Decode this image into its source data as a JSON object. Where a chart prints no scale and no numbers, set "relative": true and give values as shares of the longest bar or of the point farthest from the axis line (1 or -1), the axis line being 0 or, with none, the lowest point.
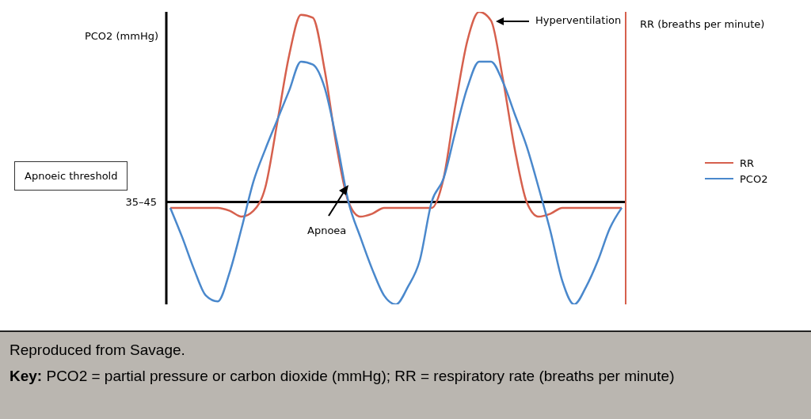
{
  "chart_data": {
    "type": "line",
    "relative": true,
    "ylabel": "PCO2 (mmHg)",
    "y2label": "RR (breaths per minute)",
    "categories": [
      null,
      null,
      null,
      null,
      null,
      null,
      null,
      null,
      null,
      null,
      null,
      null,
      null,
      null,
      null,
      null,
      null,
      null,
      null,
      null,
      null,
      null,
      null,
      null,
      null,
      null,
      null,
      null,
      null,
      null,
      null,
      null,
      null,
      null,
      null,
      null,
      null,
      null,
      null
    ],
    "series": [
      {
        "name": "RR",
        "color": "#d6604d",
        "values": [
          0.33,
          0.33,
          0.33,
          0.33,
          0.33,
          0.32,
          0.3,
          0.32,
          0.4,
          0.62,
          0.85,
          0.99,
          0.98,
          0.8,
          0.54,
          0.35,
          0.3,
          0.31,
          0.33,
          0.33,
          0.33,
          0.33,
          0.33,
          0.43,
          0.68,
          0.9,
          1.0,
          0.97,
          0.77,
          0.53,
          0.35,
          0.3,
          0.31,
          0.33,
          0.33,
          0.33,
          0.33,
          0.33,
          0.33
        ]
      },
      {
        "name": "PCO2",
        "color": "#4a88cc",
        "values": [
          0.33,
          0.23,
          0.12,
          0.03,
          0.01,
          0.11,
          0.26,
          0.42,
          0.53,
          0.63,
          0.73,
          0.83,
          0.82,
          0.74,
          0.56,
          0.35,
          0.23,
          0.12,
          0.03,
          0,
          0.06,
          0.15,
          0.35,
          0.43,
          0.59,
          0.74,
          0.83,
          0.83,
          0.76,
          0.65,
          0.54,
          0.4,
          0.25,
          0.08,
          0,
          0.06,
          0.15,
          0.26,
          0.33
        ]
      }
    ],
    "ref_lines": [
      {
        "axis": "y",
        "value": 0.35,
        "label": "35–45",
        "color": "#000000"
      }
    ],
    "annotations": [
      "Apnoeic threshold",
      "Hyperventilation",
      "Apnoea",
      "Reproduced from Savage.",
      "Key: PCO2 = partial pressure or carbon dioxide (mmHg); RR = respiratory rate (breaths per minute)"
    ],
    "legend": "right",
    "marker": "none",
    "line_style": "solid"
  }
}
